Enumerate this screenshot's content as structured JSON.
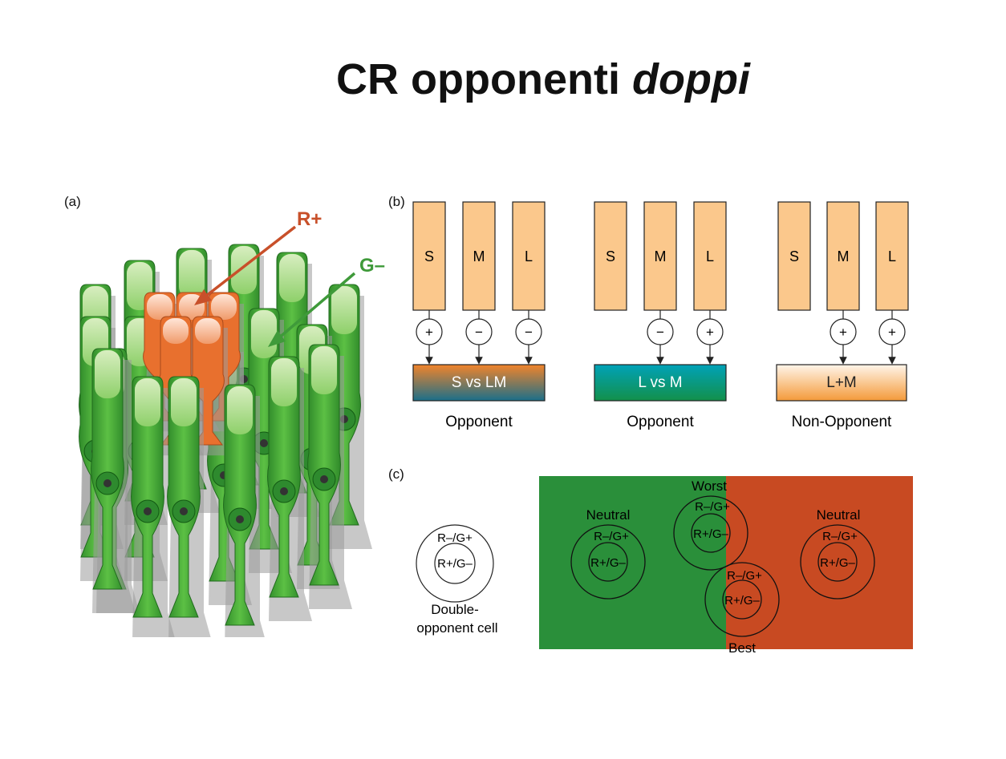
{
  "title": {
    "main": "CR opponenti ",
    "italic": "doppi"
  },
  "panel_a": {
    "label": "(a)",
    "arrows": [
      {
        "text": "R+",
        "color": "#c8502a"
      },
      {
        "text": "G–",
        "color": "#3f9a3a"
      }
    ]
  },
  "panel_b": {
    "label": "(b)",
    "groups": [
      {
        "cones": [
          "S",
          "M",
          "L"
        ],
        "signs": [
          "+",
          "−",
          "−"
        ],
        "bar": "S vs LM",
        "caption": "Opponent"
      },
      {
        "cones": [
          "S",
          "M",
          "L"
        ],
        "signs": [
          "",
          "−",
          "+"
        ],
        "bar": "L vs M",
        "caption": "Opponent"
      },
      {
        "cones": [
          "S",
          "M",
          "L"
        ],
        "signs": [
          "",
          "+",
          "+"
        ],
        "bar": "L+M",
        "caption": "Non-Opponent"
      }
    ]
  },
  "panel_c": {
    "label": "(c)",
    "cell": {
      "outer": "R–/G+",
      "inner": "R+/G–",
      "caption_line1": "Double-",
      "caption_line2": "opponent cell"
    },
    "field": {
      "green": "#2a8f3a",
      "red": "#c84a22",
      "cells": [
        {
          "label": "Neutral",
          "outer": "R–/G+",
          "inner": "R+/G–"
        },
        {
          "label": "Worst",
          "outer": "R–/G+",
          "inner": "R+/G–"
        },
        {
          "label": "Best",
          "outer": "R–/G+",
          "inner": "R+/G–"
        },
        {
          "label": "Neutral",
          "outer": "R–/G+",
          "inner": "R+/G–"
        }
      ]
    }
  }
}
